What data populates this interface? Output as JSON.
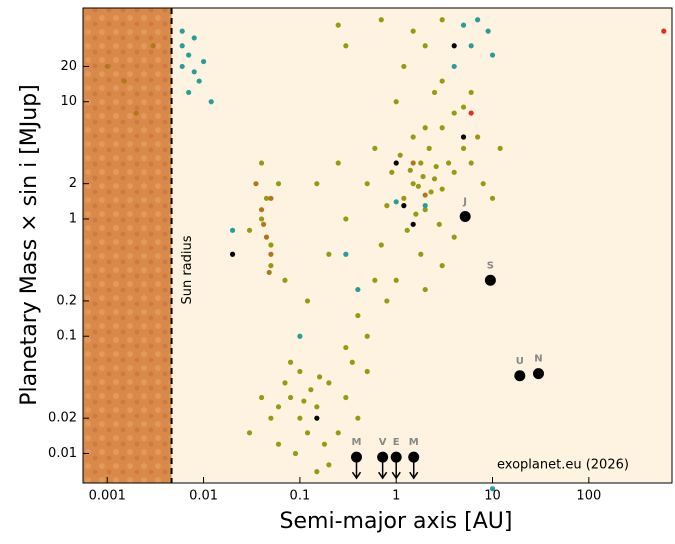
{
  "chart_data": {
    "type": "scatter",
    "xlabel": "Semi-major axis [AU]",
    "ylabel": "Planetary  Mass × sin i [MJup]",
    "log_x": true,
    "log_y": true,
    "xlim": [
      0.00056,
      730
    ],
    "ylim": [
      0.0056,
      63
    ],
    "xticks": [
      0.001,
      0.01,
      0.1,
      1,
      10,
      100
    ],
    "yticks": [
      0.01,
      0.02,
      0.1,
      0.2,
      1,
      2,
      10,
      20
    ],
    "background": "#fdf3e0",
    "sun_radius": {
      "x": 0.00465,
      "label": "Sun radius",
      "surface_color": "#d98a4a"
    },
    "credit": "exoplanet.eu (2026)",
    "series": [
      {
        "color": "#9a9a10",
        "x": [
          1.2,
          1.5,
          2,
          1.8,
          2.5,
          3,
          1.1,
          0.9,
          2.2,
          3.5,
          1.6,
          2.8,
          1.3,
          4,
          5,
          6,
          0.8,
          2,
          3,
          1.5,
          4,
          1,
          2.5,
          5,
          7,
          0.7,
          1.8,
          3,
          1,
          2,
          0.6,
          0.5,
          1.2,
          2,
          3,
          6,
          8,
          10,
          12,
          4,
          1.4,
          2.3,
          1.7,
          2.6,
          1.9,
          0.04,
          0.05,
          0.045,
          0.03,
          0.06,
          0.05,
          0.04,
          0.07,
          0.3,
          0.2,
          0.15,
          0.4,
          0.5,
          0.3,
          0.8,
          0.25,
          0.6,
          0.12,
          0.1,
          0.08,
          0.15,
          0.12,
          0.05,
          0.06,
          0.2,
          0.3,
          0.1,
          0.07,
          0.25,
          0.4,
          0.04,
          0.09,
          0.18,
          0.13,
          0.35,
          0.5,
          0.08,
          0.2,
          0.15,
          0.03,
          0.11,
          0.16,
          0.06,
          0.7,
          0.25,
          1.5,
          3,
          0.3
        ],
        "values": [
          1.5,
          2,
          1.2,
          3,
          2.2,
          1.8,
          3.5,
          2.5,
          4,
          3,
          1.1,
          0.9,
          0.8,
          2.5,
          4,
          3,
          1.3,
          6,
          6,
          5,
          8,
          10,
          12,
          9,
          5,
          0.6,
          0.5,
          0.4,
          0.3,
          0.25,
          4,
          2,
          20,
          30,
          15,
          12,
          2,
          1.5,
          4,
          0.7,
          2.6,
          1.7,
          1.9,
          2.8,
          2.3,
          1,
          0.6,
          1.5,
          0.8,
          2,
          0.4,
          3,
          0.3,
          1,
          0.5,
          2,
          0.15,
          0.1,
          0.08,
          0.2,
          3,
          0.3,
          0.2,
          0.02,
          0.03,
          0.025,
          0.015,
          0.02,
          0.012,
          0.04,
          0.03,
          0.05,
          0.04,
          0.015,
          0.02,
          0.03,
          0.01,
          0.012,
          0.035,
          0.06,
          0.05,
          0.06,
          0.008,
          0.007,
          0.015,
          0.028,
          0.045,
          0.025,
          50,
          45,
          40,
          50,
          30
        ]
      },
      {
        "color": "#2a9d9a",
        "x": [
          0.006,
          0.007,
          0.008,
          0.006,
          0.009,
          0.007,
          0.01,
          0.006,
          0.008,
          0.012,
          5,
          7,
          9,
          6,
          4,
          10,
          0.4,
          2,
          1,
          0.3,
          0.02,
          0.1,
          10
        ],
        "values": [
          20,
          25,
          18,
          30,
          15,
          12,
          22,
          40,
          35,
          10,
          45,
          50,
          40,
          30,
          20,
          25,
          0.25,
          1.3,
          1.4,
          0.5,
          0.8,
          0.1,
          0.005
        ]
      },
      {
        "color": "#b07818",
        "x": [
          0.04,
          0.045,
          0.05,
          0.035,
          0.042,
          0.05,
          0.048,
          0.001,
          0.002,
          0.003,
          0.0015,
          2,
          1.5
        ],
        "values": [
          1.2,
          0.7,
          0.5,
          2,
          0.9,
          1.5,
          0.35,
          20,
          8,
          30,
          15,
          1.6,
          3
        ]
      },
      {
        "color": "#000000",
        "x": [
          0.02,
          1.5,
          1,
          4,
          1.2,
          0.15,
          5
        ],
        "values": [
          0.5,
          0.9,
          3,
          30,
          1.3,
          0.02,
          5
        ]
      },
      {
        "color": "#e03020",
        "x": [
          600,
          6
        ],
        "values": [
          40,
          8
        ]
      }
    ],
    "solar_system": {
      "color": "#000000",
      "label_color": "#888888",
      "planets": [
        {
          "label": "M",
          "x": 0.387,
          "y": 0.0093,
          "upper_limit": true
        },
        {
          "label": "V",
          "x": 0.723,
          "y": 0.0093,
          "upper_limit": true
        },
        {
          "label": "E",
          "x": 1,
          "y": 0.0093,
          "upper_limit": true
        },
        {
          "label": "M",
          "x": 1.52,
          "y": 0.0093,
          "upper_limit": true
        },
        {
          "label": "J",
          "x": 5.2,
          "y": 1.05,
          "upper_limit": false
        },
        {
          "label": "S",
          "x": 9.5,
          "y": 0.3,
          "upper_limit": false
        },
        {
          "label": "U",
          "x": 19.2,
          "y": 0.046,
          "upper_limit": false
        },
        {
          "label": "N",
          "x": 30,
          "y": 0.048,
          "upper_limit": false
        }
      ]
    }
  }
}
